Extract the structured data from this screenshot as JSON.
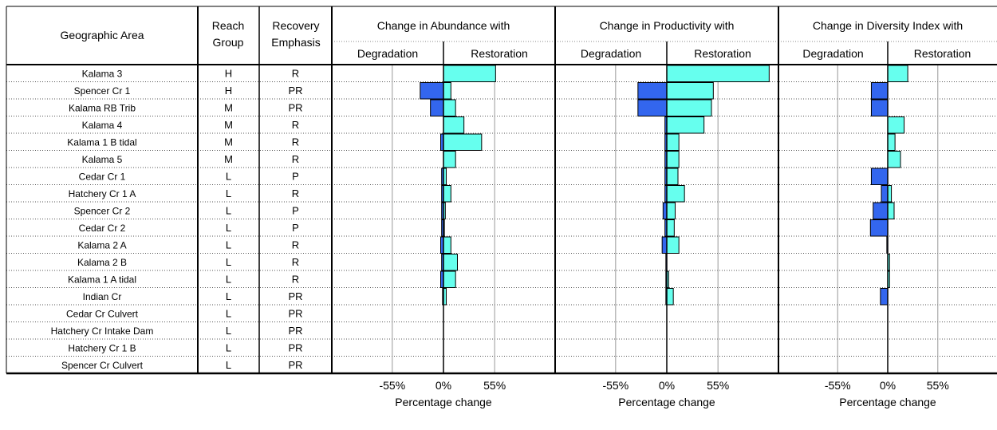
{
  "headers": {
    "geographic_area": "Geographic Area",
    "reach_group_line1": "Reach",
    "reach_group_line2": "Group",
    "recovery_line1": "Recovery",
    "recovery_line2": "Emphasis",
    "degradation": "Degradation",
    "restoration": "Restoration"
  },
  "rows": [
    {
      "area": "Kalama 3",
      "group": "H",
      "emphasis": "R"
    },
    {
      "area": "Spencer Cr 1",
      "group": "H",
      "emphasis": "PR"
    },
    {
      "area": "Kalama RB Trib",
      "group": "M",
      "emphasis": "PR"
    },
    {
      "area": "Kalama 4",
      "group": "M",
      "emphasis": "R"
    },
    {
      "area": "Kalama 1 B tidal",
      "group": "M",
      "emphasis": "R"
    },
    {
      "area": "Kalama 5",
      "group": "M",
      "emphasis": "R"
    },
    {
      "area": "Cedar Cr 1",
      "group": "L",
      "emphasis": "P"
    },
    {
      "area": "Hatchery Cr 1 A",
      "group": "L",
      "emphasis": "R"
    },
    {
      "area": "Spencer Cr 2",
      "group": "L",
      "emphasis": "P"
    },
    {
      "area": "Cedar Cr 2",
      "group": "L",
      "emphasis": "P"
    },
    {
      "area": "Kalama 2 A",
      "group": "L",
      "emphasis": "R"
    },
    {
      "area": "Kalama 2 B",
      "group": "L",
      "emphasis": "R"
    },
    {
      "area": "Kalama 1 A tidal",
      "group": "L",
      "emphasis": "R"
    },
    {
      "area": "Indian Cr",
      "group": "L",
      "emphasis": "PR"
    },
    {
      "area": "Cedar Cr Culvert",
      "group": "L",
      "emphasis": "PR"
    },
    {
      "area": "Hatchery Cr Intake Dam",
      "group": "L",
      "emphasis": "PR"
    },
    {
      "area": "Hatchery Cr 1 B",
      "group": "L",
      "emphasis": "PR"
    },
    {
      "area": "Spencer Cr Culvert",
      "group": "L",
      "emphasis": "PR"
    }
  ],
  "colors": {
    "degradation": "#3366ee",
    "restoration": "#66ffee",
    "grid": "#999999",
    "border": "#000000"
  },
  "chart_data": [
    {
      "type": "bar",
      "orientation": "horizontal",
      "title": "Change in Abundance with",
      "xlabel": "Percentage change",
      "xlim": [
        -120,
        120
      ],
      "xticks": [
        -55,
        0,
        55
      ],
      "xtick_labels": [
        "-55%",
        "0%",
        "55%"
      ],
      "categories": [
        "Kalama 3",
        "Spencer Cr 1",
        "Kalama RB Trib",
        "Kalama 4",
        "Kalama 1 B tidal",
        "Kalama 5",
        "Cedar Cr 1",
        "Hatchery Cr 1 A",
        "Spencer Cr 2",
        "Cedar Cr 2",
        "Kalama 2 A",
        "Kalama 2 B",
        "Kalama 1 A tidal",
        "Indian Cr",
        "Cedar Cr Culvert",
        "Hatchery Cr Intake Dam",
        "Hatchery Cr 1 B",
        "Spencer Cr Culvert"
      ],
      "series": [
        {
          "name": "Degradation",
          "values": [
            0,
            -25,
            -14,
            0,
            -3,
            0,
            -2,
            -2,
            -2,
            -2,
            -3,
            -2,
            -3,
            -1,
            0,
            0,
            0,
            0
          ]
        },
        {
          "name": "Restoration",
          "values": [
            56,
            8,
            13,
            22,
            41,
            13,
            3,
            8,
            2,
            1,
            8,
            15,
            13,
            3,
            0,
            0,
            0,
            0
          ]
        }
      ]
    },
    {
      "type": "bar",
      "orientation": "horizontal",
      "title": "Change in Productivity with",
      "xlabel": "Percentage change",
      "xlim": [
        -120,
        120
      ],
      "xticks": [
        -55,
        0,
        55
      ],
      "xtick_labels": [
        "-55%",
        "0%",
        "55%"
      ],
      "categories": [
        "Kalama 3",
        "Spencer Cr 1",
        "Kalama RB Trib",
        "Kalama 4",
        "Kalama 1 B tidal",
        "Kalama 5",
        "Cedar Cr 1",
        "Hatchery Cr 1 A",
        "Spencer Cr 2",
        "Cedar Cr 2",
        "Kalama 2 A",
        "Kalama 2 B",
        "Kalama 1 A tidal",
        "Indian Cr",
        "Cedar Cr Culvert",
        "Hatchery Cr Intake Dam",
        "Hatchery Cr 1 B",
        "Spencer Cr Culvert"
      ],
      "series": [
        {
          "name": "Degradation",
          "values": [
            0,
            -31,
            -31,
            -2,
            -2,
            -2,
            -2,
            -2,
            -4,
            -2,
            -5,
            -1,
            -1,
            -1,
            0,
            0,
            0,
            0
          ]
        },
        {
          "name": "Restoration",
          "values": [
            110,
            50,
            48,
            40,
            13,
            13,
            12,
            19,
            9,
            8,
            13,
            0,
            2,
            7,
            0,
            0,
            0,
            0
          ]
        }
      ]
    },
    {
      "type": "bar",
      "orientation": "horizontal",
      "title": "Change in Diversity Index with",
      "xlabel": "Percentage change",
      "xlim": [
        -120,
        120
      ],
      "xticks": [
        -55,
        0,
        55
      ],
      "xtick_labels": [
        "-55%",
        "0%",
        "55%"
      ],
      "categories": [
        "Kalama 3",
        "Spencer Cr 1",
        "Kalama RB Trib",
        "Kalama 4",
        "Kalama 1 B tidal",
        "Kalama 5",
        "Cedar Cr 1",
        "Hatchery Cr 1 A",
        "Spencer Cr 2",
        "Cedar Cr 2",
        "Kalama 2 A",
        "Kalama 2 B",
        "Kalama 1 A tidal",
        "Indian Cr",
        "Cedar Cr Culvert",
        "Hatchery Cr Intake Dam",
        "Hatchery Cr 1 B",
        "Spencer Cr Culvert"
      ],
      "series": [
        {
          "name": "Degradation",
          "values": [
            0,
            -18,
            -18,
            0,
            0,
            0,
            -18,
            -7,
            -16,
            -19,
            -1,
            0,
            0,
            -8,
            0,
            0,
            0,
            0
          ]
        },
        {
          "name": "Restoration",
          "values": [
            22,
            0,
            0,
            18,
            8,
            14,
            0,
            4,
            7,
            0,
            0,
            2,
            2,
            0,
            0,
            0,
            0,
            0
          ]
        }
      ]
    }
  ]
}
